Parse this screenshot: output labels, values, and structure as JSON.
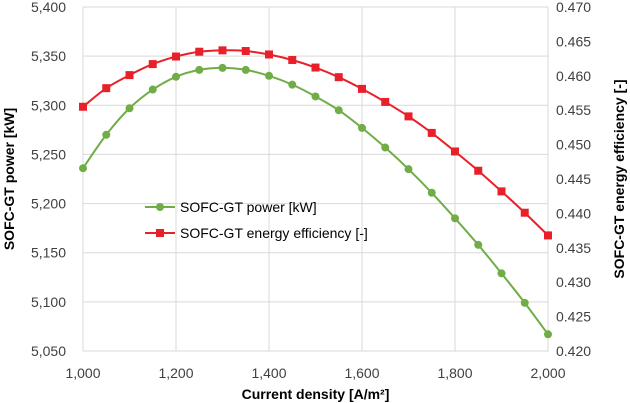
{
  "chart_data": {
    "type": "line",
    "xlabel": "Current density [A/m²]",
    "ylabel": "SOFC-GT power [kW]",
    "y2label": "SOFC-GT energy efficiency [-]",
    "xlim": [
      1000,
      2000
    ],
    "ylim": [
      5050,
      5400
    ],
    "y2lim": [
      0.42,
      0.47
    ],
    "x_ticks": [
      1000,
      1200,
      1400,
      1600,
      1800,
      2000
    ],
    "x_tick_labels": [
      "1,000",
      "1,200",
      "1,400",
      "1,600",
      "1,800",
      "2,000"
    ],
    "y_ticks": [
      5050,
      5100,
      5150,
      5200,
      5250,
      5300,
      5350,
      5400
    ],
    "y_tick_labels": [
      "5,050",
      "5,100",
      "5,150",
      "5,200",
      "5,250",
      "5,300",
      "5,350",
      "5,400"
    ],
    "y2_ticks": [
      0.42,
      0.425,
      0.43,
      0.435,
      0.44,
      0.445,
      0.45,
      0.455,
      0.46,
      0.465,
      0.47
    ],
    "y2_tick_labels": [
      "0.420",
      "0.425",
      "0.430",
      "0.435",
      "0.440",
      "0.445",
      "0.450",
      "0.455",
      "0.460",
      "0.465",
      "0.470"
    ],
    "grid": true,
    "legend_position": "center-left",
    "x": [
      1000,
      1050,
      1100,
      1150,
      1200,
      1250,
      1300,
      1350,
      1400,
      1450,
      1500,
      1550,
      1600,
      1650,
      1700,
      1750,
      1800,
      1850,
      1900,
      1950,
      2000
    ],
    "series": [
      {
        "name": "SOFC-GT power [kW]",
        "axis": "left",
        "color": "#70AD47",
        "marker": "circle",
        "values": [
          5236,
          5270,
          5297,
          5316,
          5329,
          5336,
          5338,
          5336,
          5330,
          5321,
          5309,
          5295,
          5277,
          5257,
          5235,
          5211,
          5185,
          5158,
          5129,
          5099,
          5067
        ]
      },
      {
        "name": "SOFC-GT energy efficiency [-]",
        "axis": "right",
        "color": "#E8202A",
        "marker": "square",
        "values": [
          0.4555,
          0.4582,
          0.4601,
          0.4617,
          0.4628,
          0.4635,
          0.4637,
          0.4636,
          0.4631,
          0.4623,
          0.4612,
          0.4598,
          0.4581,
          0.4562,
          0.4541,
          0.4517,
          0.449,
          0.4462,
          0.4432,
          0.4401,
          0.4368
        ]
      }
    ]
  }
}
